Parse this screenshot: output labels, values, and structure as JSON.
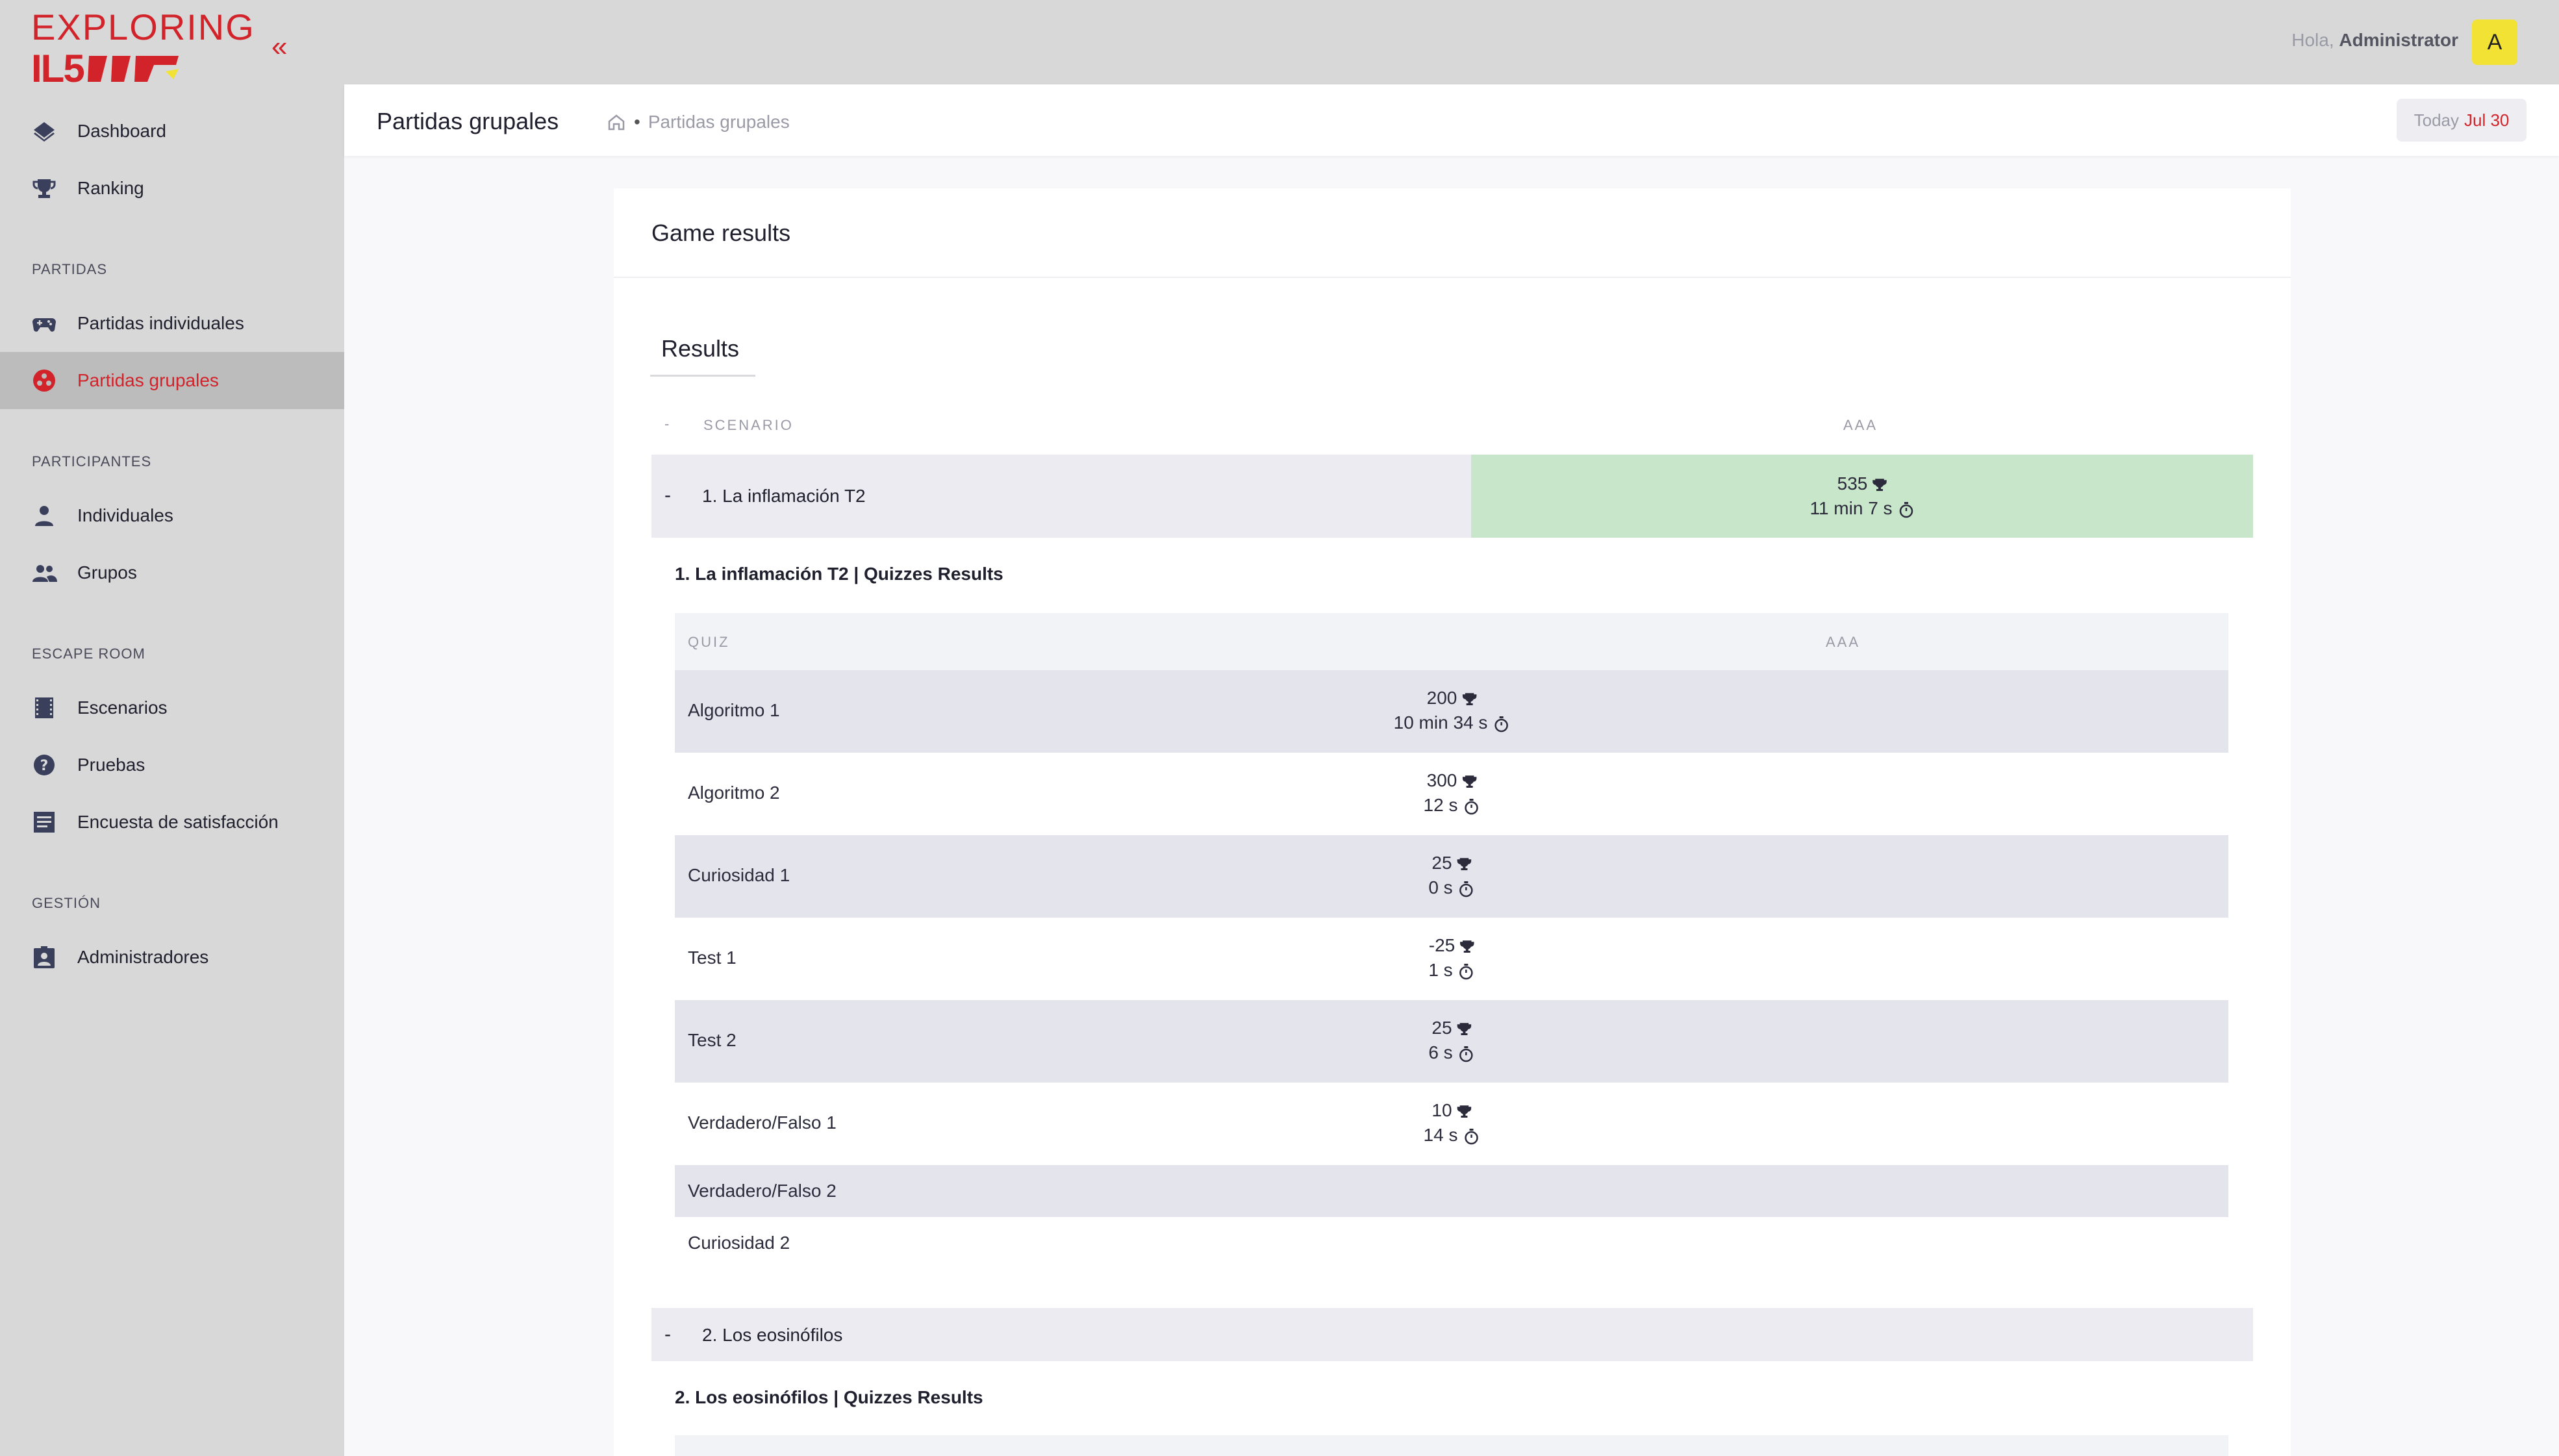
{
  "logo": {
    "top": "EXPLORING",
    "bottom": "IL5"
  },
  "sidebar": {
    "items": [
      {
        "label": "Dashboard",
        "icon": "layers-icon"
      },
      {
        "label": "Ranking",
        "icon": "trophy-icon"
      }
    ],
    "sections": [
      {
        "title": "PARTIDAS",
        "items": [
          {
            "label": "Partidas individuales",
            "icon": "gamepad-icon"
          },
          {
            "label": "Partidas grupales",
            "icon": "group-game-icon",
            "active": true
          }
        ]
      },
      {
        "title": "PARTICIPANTES",
        "items": [
          {
            "label": "Individuales",
            "icon": "person-icon"
          },
          {
            "label": "Grupos",
            "icon": "people-icon"
          }
        ]
      },
      {
        "title": "ESCAPE ROOM",
        "items": [
          {
            "label": "Escenarios",
            "icon": "film-icon"
          },
          {
            "label": "Pruebas",
            "icon": "help-icon"
          },
          {
            "label": "Encuesta de satisfacción",
            "icon": "list-icon"
          }
        ]
      },
      {
        "title": "GESTIÓN",
        "items": [
          {
            "label": "Administradores",
            "icon": "badge-icon"
          }
        ]
      }
    ]
  },
  "header": {
    "greeting": "Hola,",
    "user": "Administrator",
    "avatar": "A"
  },
  "subheader": {
    "title": "Partidas grupales",
    "breadcrumb": "Partidas grupales",
    "today_label": "Today",
    "today_value": "Jul 30"
  },
  "card": {
    "title": "Game results",
    "tab": "Results"
  },
  "table": {
    "col_dash": "-",
    "col_scenario": "SCENARIO",
    "col_team": "AAA"
  },
  "scenarios": [
    {
      "dash": "-",
      "name": "1. La inflamación T2",
      "points": "535",
      "time": "11 min 7 s",
      "quiz_title": "1. La inflamación T2 | Quizzes Results",
      "quiz_header": {
        "col_quiz": "QUIZ",
        "col_team": "AAA"
      },
      "quizzes": [
        {
          "name": "Algoritmo 1",
          "points": "200",
          "time": "10 min 34 s"
        },
        {
          "name": "Algoritmo 2",
          "points": "300",
          "time": "12 s"
        },
        {
          "name": "Curiosidad 1",
          "points": "25",
          "time": "0 s"
        },
        {
          "name": "Test 1",
          "points": "-25",
          "time": "1 s"
        },
        {
          "name": "Test 2",
          "points": "25",
          "time": "6 s"
        },
        {
          "name": "Verdadero/Falso 1",
          "points": "10",
          "time": "14 s"
        },
        {
          "name": "Verdadero/Falso 2"
        },
        {
          "name": "Curiosidad 2"
        }
      ]
    },
    {
      "dash": "-",
      "name": "2. Los eosinófilos",
      "quiz_title": "2. Los eosinófilos | Quizzes Results"
    }
  ],
  "colors": {
    "accent": "#d2232a",
    "success_bg": "#c8e6c9",
    "avatar_bg": "#f2e233"
  }
}
